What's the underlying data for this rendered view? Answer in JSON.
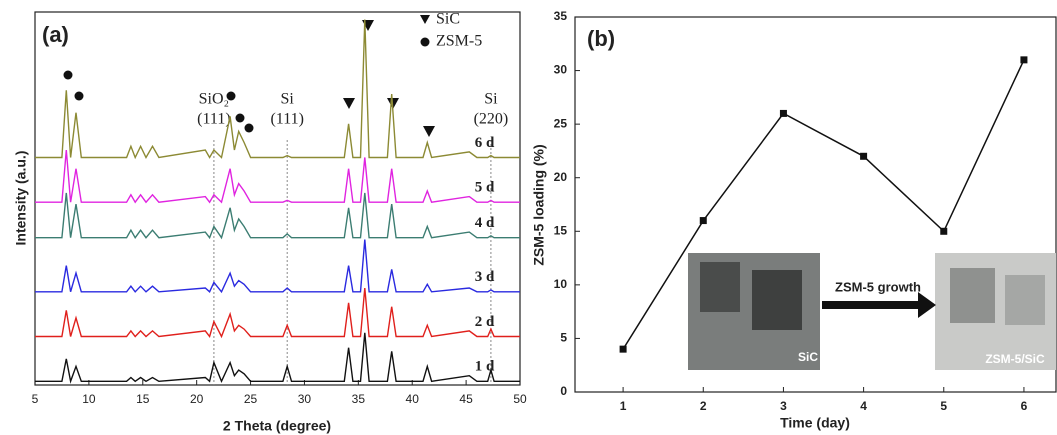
{
  "chart_data": [
    {
      "type": "line",
      "panel": "(a)",
      "xlabel": "2 Theta (degree)",
      "ylabel": "Intensity (a.u.)",
      "xlim": [
        5,
        50
      ],
      "xticks": [
        5,
        10,
        15,
        20,
        25,
        30,
        35,
        40,
        45,
        50
      ],
      "ylim": [
        0,
        100
      ],
      "legend": [
        "SiC",
        "ZSM-5"
      ],
      "annotations": [
        {
          "text": [
            "SiO₂",
            "(111)"
          ],
          "x": 21.6
        },
        {
          "text": [
            "Si",
            "(111)"
          ],
          "x": 28.4
        },
        {
          "text": [
            "Si",
            "(220)"
          ],
          "x": 47.3
        }
      ],
      "x": [
        5,
        7.5,
        7.9,
        8.3,
        8.8,
        9.3,
        13.5,
        13.9,
        14.3,
        14.8,
        15.3,
        15.9,
        16.5,
        20.8,
        21.2,
        21.6,
        22.3,
        23.1,
        23.5,
        23.9,
        24.4,
        25,
        28,
        28.4,
        28.8,
        33.7,
        34.1,
        34.5,
        35.2,
        35.6,
        36,
        37.7,
        38.1,
        38.5,
        41,
        41.4,
        41.8,
        45.3,
        46,
        47,
        47.3,
        47.6,
        50
      ],
      "series": [
        {
          "name": "1 d",
          "color": "#111111",
          "values": [
            1,
            1,
            7,
            1,
            5,
            1,
            1,
            2,
            1,
            2,
            1,
            2,
            1,
            2,
            1,
            6,
            1,
            6,
            2.5,
            4,
            3,
            1,
            1,
            5,
            1,
            1,
            10,
            1,
            1,
            14,
            1,
            1,
            9,
            1,
            1,
            5,
            1,
            2.5,
            1,
            1,
            4,
            1,
            1
          ]
        },
        {
          "name": "2 d",
          "color": "#e0201c",
          "values": [
            13,
            13,
            20,
            13,
            18,
            13,
            13,
            14.5,
            13,
            14.5,
            13,
            14.5,
            13,
            14.5,
            13,
            17,
            13,
            19,
            14.5,
            16,
            15,
            13,
            13,
            16,
            13,
            13,
            22,
            13,
            13,
            26,
            13,
            13,
            21,
            13,
            13,
            16,
            13,
            14.5,
            13,
            13,
            15,
            13,
            13
          ]
        },
        {
          "name": "3 d",
          "color": "#2a2ae0",
          "values": [
            25,
            25,
            32,
            25,
            30,
            25,
            25,
            26.5,
            25,
            26.5,
            25,
            26.5,
            25,
            26,
            25,
            27.5,
            25,
            30,
            26.5,
            28,
            27,
            25,
            25,
            26,
            25,
            25,
            32,
            25,
            25,
            39,
            25,
            25,
            31,
            25,
            25,
            27,
            25,
            26,
            25,
            25,
            25.5,
            25,
            25
          ]
        },
        {
          "name": "4 d",
          "color": "#3c7d72",
          "values": [
            39.5,
            39.5,
            51.5,
            39.5,
            48.5,
            39.5,
            39.5,
            41.5,
            39.5,
            41.5,
            39.5,
            41.5,
            39.5,
            41,
            39.5,
            42.5,
            39.5,
            47.5,
            41.5,
            44.5,
            42.5,
            39.5,
            39.5,
            40.5,
            39.5,
            39.5,
            47.5,
            39.5,
            39.5,
            51.5,
            39.5,
            39.5,
            48.5,
            39.5,
            39.5,
            42.5,
            39.5,
            41,
            39.5,
            39.5,
            40,
            39.5,
            39.5
          ]
        },
        {
          "name": "5 d",
          "color": "#e024e0",
          "values": [
            49,
            49,
            63,
            49,
            58,
            49,
            49,
            51,
            49,
            51,
            49,
            51,
            49,
            50.5,
            49,
            51,
            49,
            58,
            51,
            54,
            52,
            49,
            49,
            49.5,
            49,
            49,
            58,
            49,
            49,
            61,
            49,
            49,
            58,
            49,
            49,
            52,
            49,
            50.5,
            49,
            49,
            49.5,
            49,
            49
          ]
        },
        {
          "name": "6 d",
          "color": "#8c8a34",
          "values": [
            61,
            61,
            79,
            61,
            73,
            61,
            61,
            64,
            61,
            64,
            61,
            64,
            61,
            63,
            61,
            63,
            61,
            72,
            63,
            68,
            65,
            61,
            61,
            61.5,
            61,
            61,
            70,
            61,
            61,
            98,
            61,
            61,
            78,
            61,
            61,
            65,
            61,
            62.5,
            61,
            61,
            61.5,
            61,
            61
          ]
        }
      ]
    },
    {
      "type": "line",
      "panel": "(b)",
      "xlabel": "Time (day)",
      "ylabel": "ZSM-5 loading (%)",
      "xlim": [
        0.4,
        6.4
      ],
      "xticks": [
        1,
        2,
        3,
        4,
        5,
        6
      ],
      "ylim": [
        0,
        35
      ],
      "yticks": [
        0,
        5,
        10,
        15,
        20,
        25,
        30,
        35
      ],
      "x": [
        1,
        2,
        3,
        4,
        5,
        6
      ],
      "values": [
        4,
        16,
        26,
        22,
        15,
        31
      ],
      "color": "#111111",
      "annotations": [
        "ZSM-5 growth",
        "SiC",
        "ZSM-5/SiC"
      ]
    }
  ]
}
